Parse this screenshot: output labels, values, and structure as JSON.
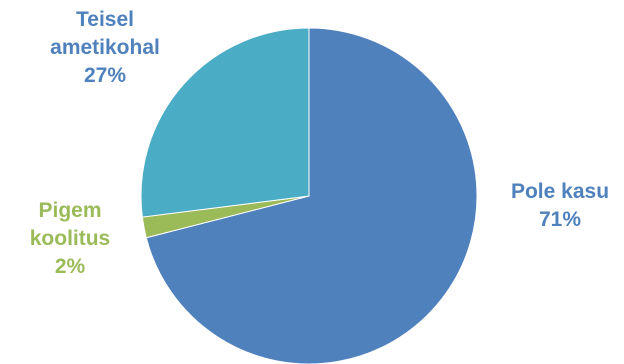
{
  "chart_data": {
    "type": "pie",
    "slices": [
      {
        "label_lines": [
          "Pole kasu"
        ],
        "value": 71,
        "value_label": "71%",
        "color": "#4f81bd",
        "label_color": "#4f81bd"
      },
      {
        "label_lines": [
          "Pigem",
          "koolitus"
        ],
        "value": 2,
        "value_label": "2%",
        "color": "#9bbb59",
        "label_color": "#9bbb59"
      },
      {
        "label_lines": [
          "Teisel",
          "ametikohal"
        ],
        "value": 27,
        "value_label": "27%",
        "color": "#4bacc6",
        "label_color": "#4f81bd"
      }
    ],
    "start_angle_deg": 0,
    "direction": "clockwise",
    "legend": "none",
    "data_labels": "outside"
  }
}
